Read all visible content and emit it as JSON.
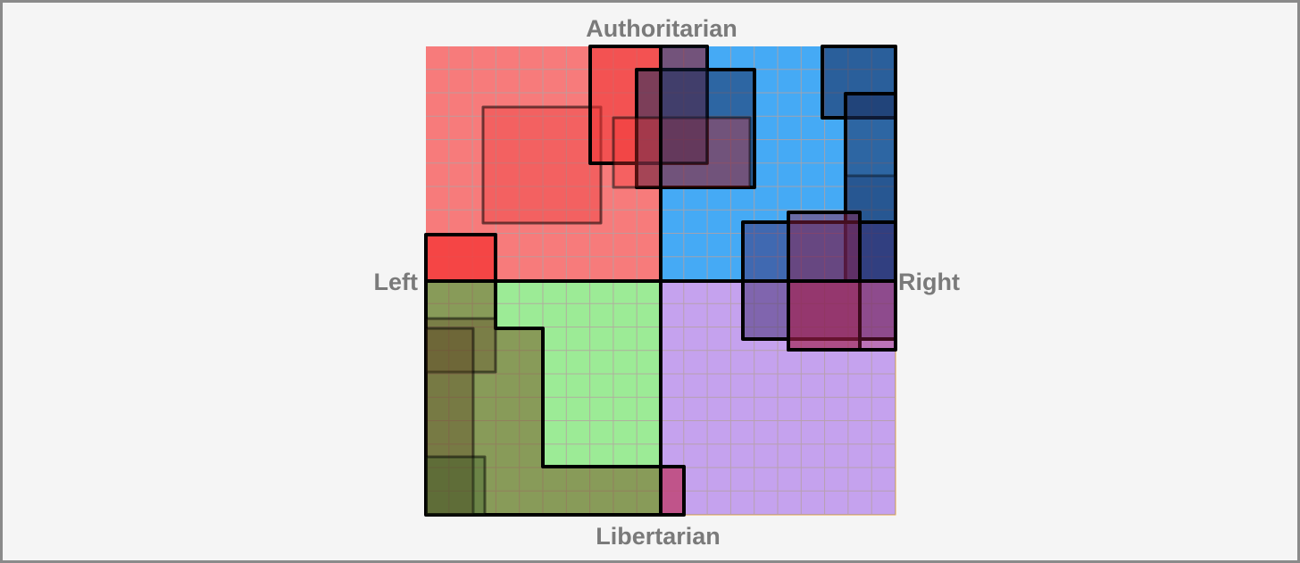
{
  "labels": {
    "top": "Authoritarian",
    "left": "Left",
    "right": "Right",
    "bottom": "Libertarian"
  }
}
